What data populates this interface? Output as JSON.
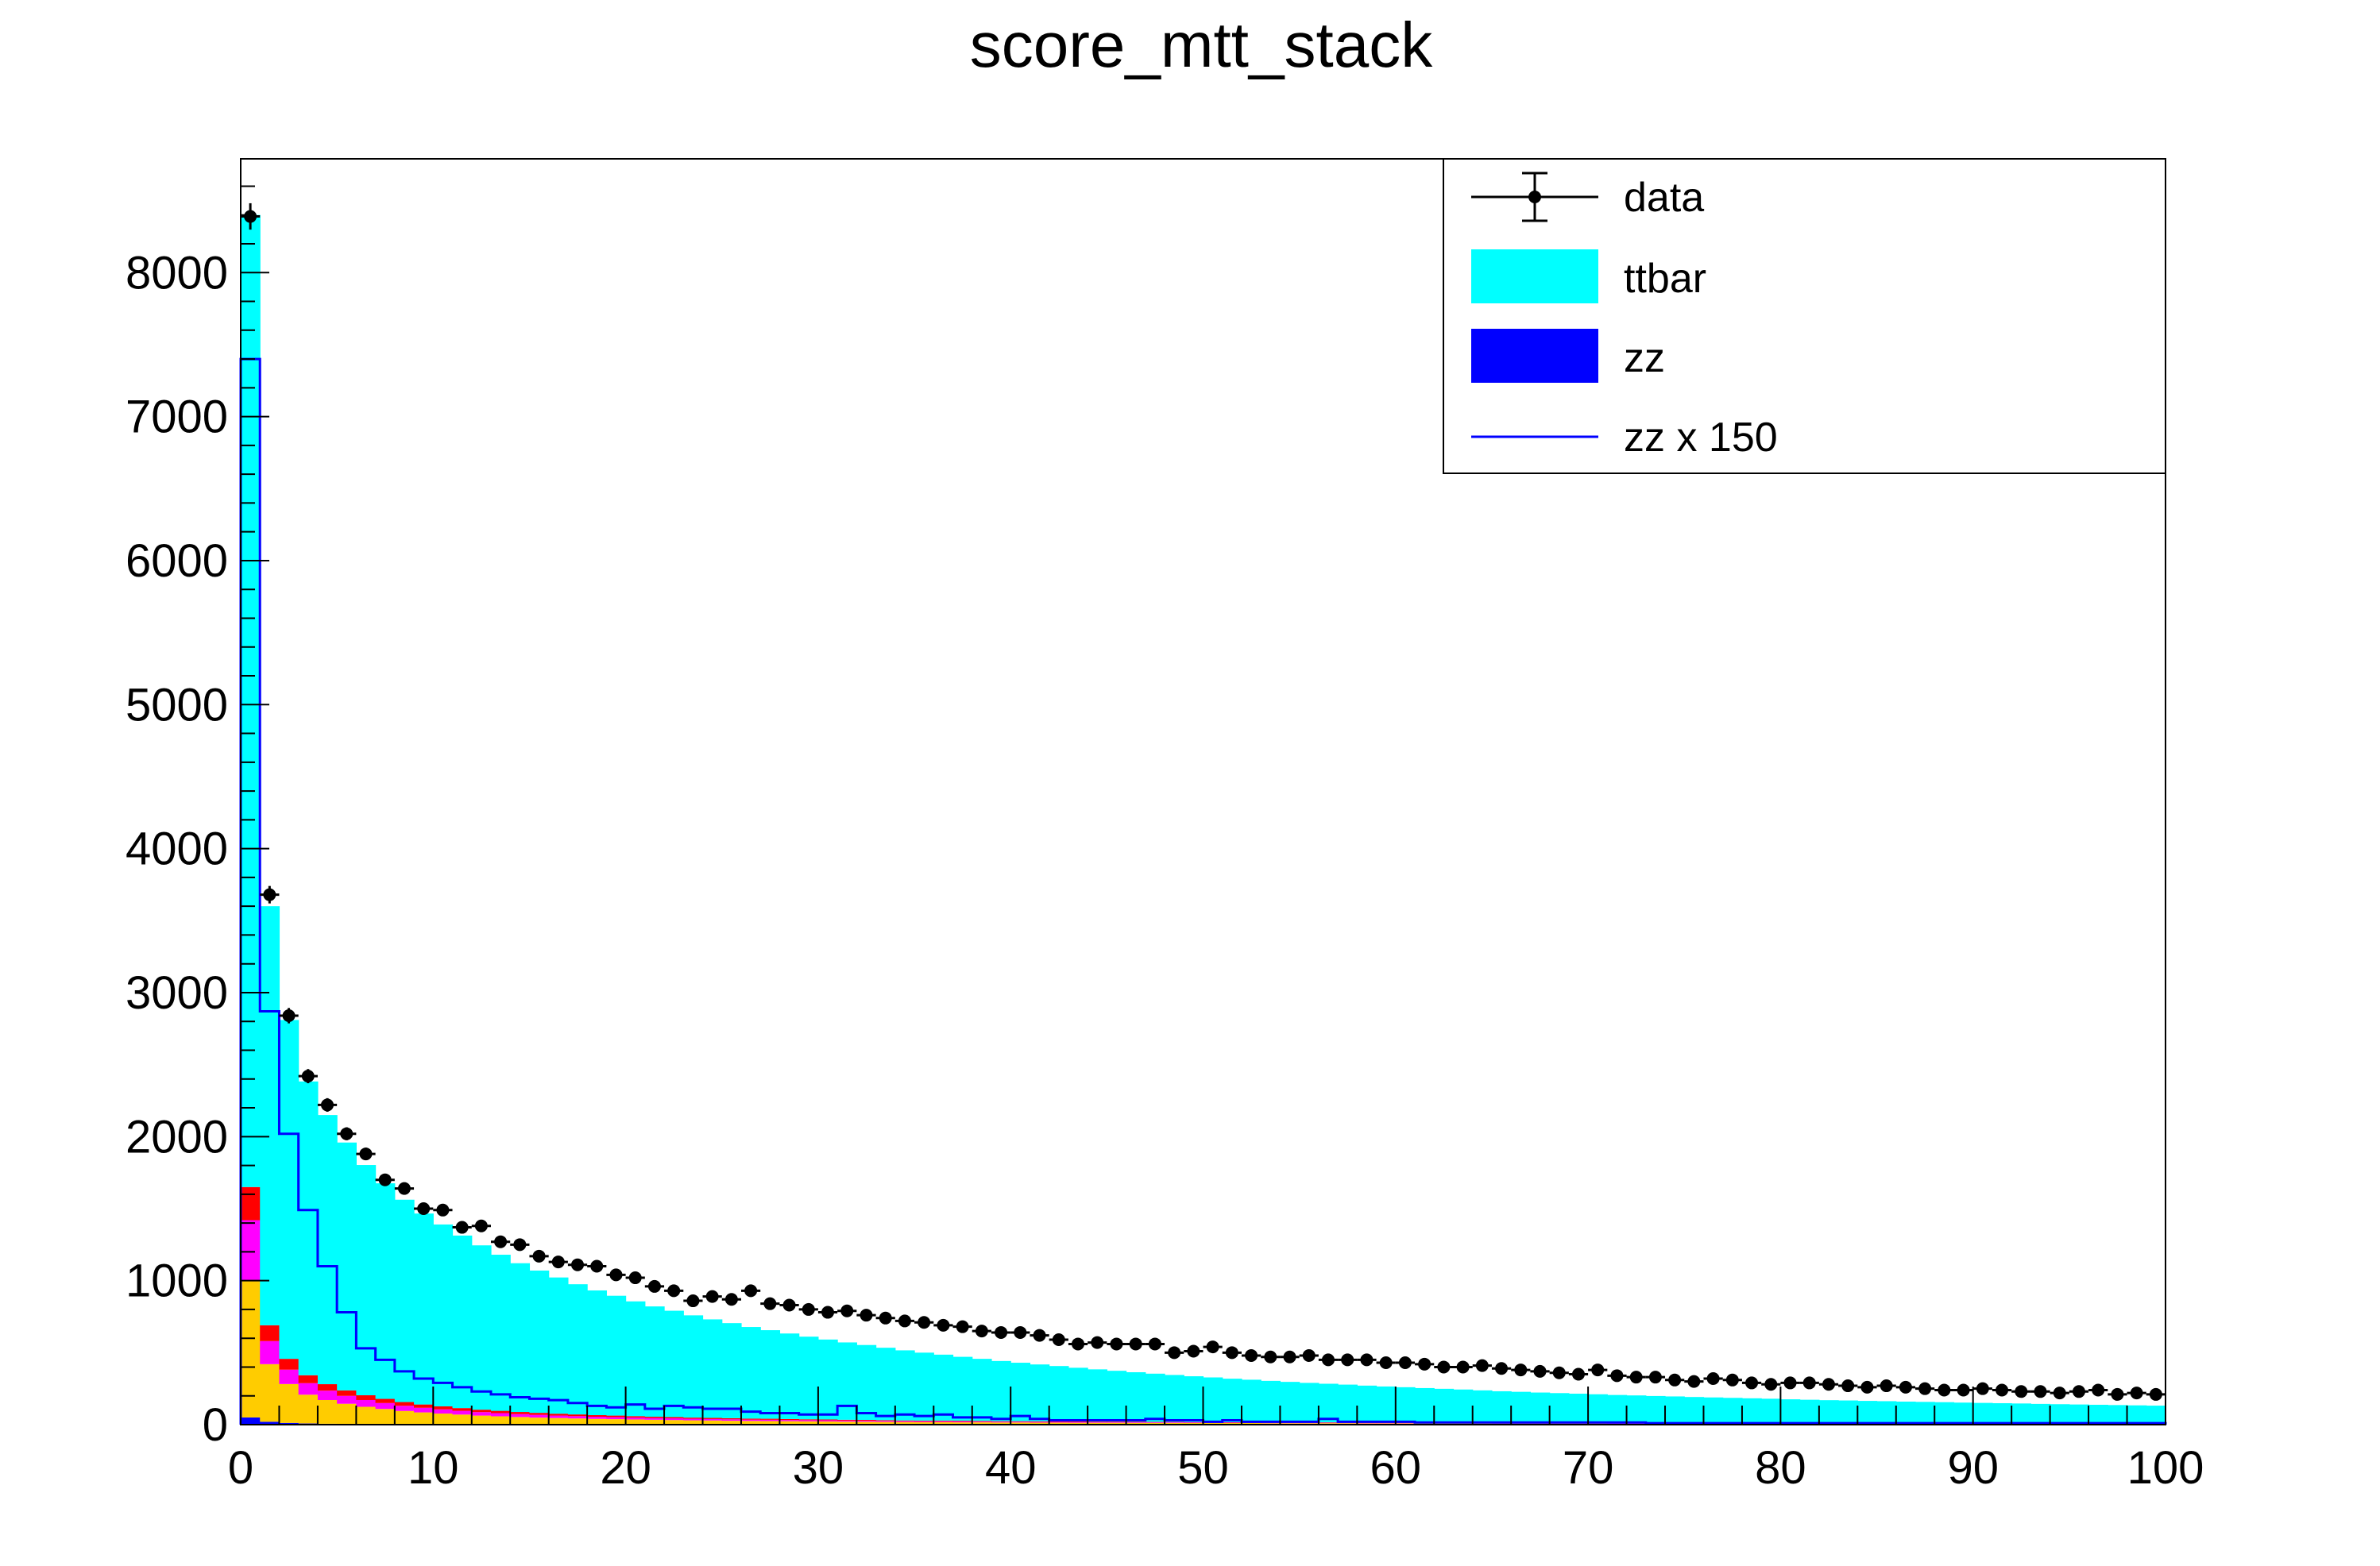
{
  "chart_data": {
    "type": "bar",
    "stacked": true,
    "title": "score_mtt_stack",
    "xlabel": "",
    "ylabel": "",
    "xlim": [
      0,
      100
    ],
    "ylim": [
      0,
      8790
    ],
    "x_ticks": [
      0,
      10,
      20,
      30,
      40,
      50,
      60,
      70,
      80,
      90,
      100
    ],
    "y_ticks": [
      0,
      1000,
      2000,
      3000,
      4000,
      5000,
      6000,
      7000,
      8000
    ],
    "grid": false,
    "legend_position": "top-right",
    "legend": [
      {
        "label": "data",
        "style": "marker"
      },
      {
        "label": "ttbar",
        "style": "fill",
        "color": "#00ffff"
      },
      {
        "label": "zz",
        "style": "fill",
        "color": "#0000ff"
      },
      {
        "label": "zz x 150",
        "style": "line",
        "color": "#0000ff"
      }
    ],
    "bins": {
      "x_start": 0,
      "width": 1,
      "count": 100
    },
    "series": [
      {
        "name": "zz",
        "color": "#0000ff",
        "values": [
          50,
          20,
          12,
          8,
          6,
          5,
          4,
          4,
          3,
          3,
          3,
          3,
          2,
          2,
          2,
          2,
          2,
          2,
          2,
          2,
          2,
          2,
          2,
          2,
          2,
          2,
          2,
          2,
          2,
          2,
          2,
          2,
          2,
          2,
          2,
          2,
          2,
          2,
          2,
          2,
          2,
          2,
          2,
          2,
          2,
          2,
          2,
          2,
          2,
          2,
          2,
          2,
          2,
          2,
          2,
          2,
          2,
          2,
          2,
          2,
          2,
          2,
          2,
          2,
          2,
          2,
          2,
          2,
          2,
          2,
          2,
          2,
          2,
          2,
          2,
          2,
          2,
          2,
          2,
          2,
          2,
          2,
          2,
          2,
          2,
          2,
          2,
          2,
          2,
          2,
          2,
          2,
          2,
          2,
          2,
          2,
          2,
          2,
          2,
          2
        ]
      },
      {
        "name": "",
        "color": "#ffcc00",
        "values": [
          950,
          400,
          270,
          200,
          165,
          140,
          120,
          105,
          92,
          82,
          74,
          67,
          61,
          56,
          51,
          47,
          44,
          41,
          38,
          36,
          34,
          32,
          30,
          28,
          27,
          25,
          24,
          23,
          22,
          21,
          20,
          19,
          18,
          17,
          16,
          15,
          15,
          14,
          14,
          13,
          13,
          12,
          12,
          11,
          11,
          11,
          10,
          10,
          10,
          9,
          9,
          9,
          9,
          8,
          8,
          8,
          8,
          8,
          7,
          7,
          7,
          7,
          7,
          7,
          6,
          6,
          6,
          6,
          6,
          6,
          6,
          5,
          5,
          5,
          5,
          5,
          5,
          5,
          5,
          5,
          4,
          4,
          4,
          4,
          4,
          4,
          4,
          4,
          4,
          4,
          4,
          4,
          4,
          3,
          3,
          3,
          3,
          3,
          3,
          3
        ]
      },
      {
        "name": "",
        "color": "#ff00ff",
        "values": [
          420,
          160,
          100,
          80,
          65,
          55,
          47,
          41,
          36,
          32,
          29,
          26,
          24,
          22,
          20,
          19,
          17,
          16,
          15,
          14,
          13,
          12,
          12,
          11,
          10,
          10,
          9,
          9,
          8,
          8,
          8,
          7,
          7,
          7,
          6,
          6,
          6,
          6,
          5,
          5,
          5,
          5,
          5,
          5,
          4,
          4,
          4,
          4,
          4,
          4,
          4,
          3,
          3,
          3,
          3,
          3,
          3,
          3,
          3,
          3,
          3,
          3,
          3,
          3,
          3,
          2,
          2,
          2,
          2,
          2,
          2,
          2,
          2,
          2,
          2,
          2,
          2,
          2,
          2,
          2,
          2,
          2,
          2,
          2,
          2,
          2,
          2,
          2,
          2,
          2,
          2,
          2,
          2,
          2,
          2,
          2,
          2,
          2,
          2,
          2
        ]
      },
      {
        "name": "",
        "color": "#ff0000",
        "values": [
          230,
          110,
          75,
          55,
          45,
          38,
          33,
          29,
          26,
          23,
          21,
          19,
          17,
          16,
          15,
          14,
          13,
          12,
          11,
          11,
          10,
          9,
          9,
          8,
          8,
          8,
          7,
          7,
          7,
          6,
          6,
          6,
          6,
          5,
          5,
          5,
          5,
          5,
          5,
          4,
          4,
          4,
          4,
          4,
          4,
          4,
          4,
          3,
          3,
          3,
          3,
          3,
          3,
          3,
          3,
          3,
          3,
          3,
          3,
          3,
          3,
          3,
          3,
          3,
          2,
          2,
          2,
          2,
          2,
          2,
          2,
          2,
          2,
          2,
          2,
          2,
          2,
          2,
          2,
          2,
          2,
          2,
          2,
          2,
          2,
          2,
          2,
          2,
          2,
          2,
          2,
          2,
          2,
          2,
          2,
          2,
          2,
          2,
          2,
          2
        ]
      },
      {
        "name": "ttbar",
        "color": "#00ffff",
        "values": [
          6750,
          2910,
          2353,
          2040,
          1869,
          1721,
          1599,
          1497,
          1405,
          1326,
          1263,
          1198,
          1141,
          1084,
          1033,
          988,
          946,
          904,
          866,
          832,
          797,
          766,
          738,
          710,
          684,
          660,
          636,
          615,
          594,
          574,
          555,
          537,
          520,
          503,
          487,
          472,
          458,
          444,
          431,
          418,
          406,
          395,
          384,
          373,
          363,
          353,
          344,
          335,
          326,
          318,
          310,
          302,
          295,
          288,
          281,
          274,
          268,
          262,
          256,
          250,
          245,
          239,
          234,
          229,
          225,
          220,
          216,
          211,
          207,
          203,
          199,
          195,
          192,
          188,
          185,
          181,
          178,
          175,
          172,
          169,
          166,
          163,
          160,
          158,
          155,
          153,
          150,
          148,
          146,
          143,
          141,
          139,
          137,
          135,
          133,
          131,
          129,
          127,
          125,
          123
        ]
      }
    ],
    "overlay_line": {
      "name": "zz x 150",
      "color": "#0000ff",
      "values": [
        7400,
        2870,
        2020,
        1490,
        1100,
        780,
        530,
        450,
        370,
        320,
        290,
        260,
        230,
        210,
        190,
        180,
        170,
        150,
        130,
        120,
        140,
        110,
        130,
        120,
        110,
        110,
        90,
        80,
        80,
        70,
        70,
        130,
        80,
        60,
        70,
        60,
        70,
        50,
        50,
        40,
        60,
        40,
        30,
        30,
        30,
        30,
        30,
        40,
        30,
        30,
        20,
        30,
        20,
        20,
        20,
        20,
        40,
        20,
        20,
        20,
        20,
        15,
        15,
        15,
        15,
        15,
        15,
        15,
        15,
        15,
        15,
        15,
        15,
        10,
        10,
        10,
        10,
        10,
        10,
        10,
        10,
        10,
        10,
        10,
        10,
        10,
        10,
        10,
        10,
        10,
        10,
        10,
        10,
        10,
        10,
        10,
        10,
        10,
        10,
        10
      ]
    },
    "data_points": {
      "name": "data",
      "errors": "sqrt",
      "values": [
        8390,
        3680,
        2840,
        2420,
        2220,
        2020,
        1880,
        1700,
        1640,
        1500,
        1490,
        1370,
        1380,
        1270,
        1250,
        1170,
        1130,
        1110,
        1100,
        1040,
        1020,
        960,
        930,
        860,
        890,
        870,
        930,
        840,
        830,
        800,
        780,
        790,
        760,
        740,
        720,
        710,
        690,
        680,
        650,
        640,
        640,
        620,
        590,
        560,
        570,
        560,
        560,
        560,
        500,
        510,
        540,
        500,
        480,
        470,
        470,
        480,
        450,
        450,
        450,
        430,
        430,
        420,
        400,
        400,
        410,
        390,
        380,
        370,
        360,
        350,
        380,
        340,
        330,
        330,
        310,
        300,
        320,
        310,
        290,
        280,
        290,
        290,
        280,
        270,
        260,
        270,
        260,
        250,
        240,
        240,
        250,
        240,
        230,
        230,
        220,
        230,
        240,
        210,
        220,
        210
      ]
    }
  }
}
